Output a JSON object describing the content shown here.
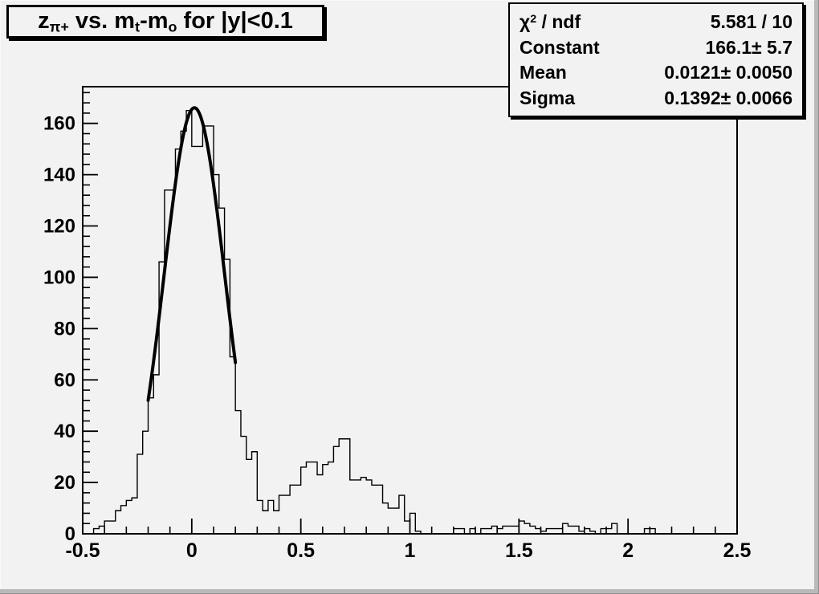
{
  "window": {
    "background": "#f2f2f2",
    "edge_dark": "#8f8f8f",
    "edge_band": "#b9b9b9"
  },
  "title": {
    "plain": "z_pi+ vs. m_t-m_o for |y|<0.1",
    "segments": [
      {
        "t": "z"
      },
      {
        "t": "π+",
        "sub": true
      },
      {
        "t": " vs. m"
      },
      {
        "t": "t",
        "sub": true
      },
      {
        "t": "-m"
      },
      {
        "t": "o",
        "sub": true
      },
      {
        "t": " for |y|<0.1"
      }
    ]
  },
  "stats": {
    "rows": [
      {
        "label_segments": [
          {
            "t": "χ"
          },
          {
            "t": "2",
            "sup": true
          },
          {
            "t": " / ndf"
          }
        ],
        "label_plain": "chi2 / ndf",
        "value": "5.581 / 10"
      },
      {
        "label_segments": [
          {
            "t": "Constant"
          }
        ],
        "label_plain": "Constant",
        "value": "166.1± 5.7"
      },
      {
        "label_segments": [
          {
            "t": "Mean"
          }
        ],
        "label_plain": "Mean",
        "value": "0.0121± 0.0050"
      },
      {
        "label_segments": [
          {
            "t": "Sigma"
          }
        ],
        "label_plain": "Sigma",
        "value": "0.1392± 0.0066"
      }
    ]
  },
  "chart_data": {
    "type": "bar",
    "subtype": "step-histogram",
    "title": "z_pi+ vs. m_t-m_o for |y|<0.1",
    "xlabel": "",
    "ylabel": "",
    "xlim": [
      -0.5,
      2.5
    ],
    "ylim": [
      0,
      174.3
    ],
    "grid": false,
    "legend_position": "none",
    "x_start": -0.5,
    "bin_width": 0.025,
    "values": [
      0,
      0,
      2,
      3,
      5,
      5,
      9,
      11,
      13,
      14,
      31,
      40,
      53,
      62,
      106,
      134,
      134,
      150,
      157,
      165,
      151,
      151,
      159,
      159,
      140,
      127,
      107,
      69,
      48,
      38,
      29,
      32,
      13,
      9,
      13,
      9,
      15,
      15,
      19,
      19,
      26,
      28,
      28,
      23,
      27,
      28,
      34,
      37,
      37,
      21,
      21,
      22,
      21,
      19,
      19,
      12,
      10,
      10,
      15,
      5,
      8,
      1,
      0,
      0,
      0,
      0,
      0,
      0,
      2,
      2,
      0,
      2,
      0,
      2,
      2,
      3,
      2,
      3,
      3,
      3,
      5,
      4,
      3,
      2,
      1,
      2,
      2,
      2,
      4,
      3,
      3,
      1,
      2,
      1,
      0,
      2,
      2,
      4,
      0,
      0,
      0,
      0,
      0,
      2,
      2,
      0,
      0,
      0,
      0,
      0,
      0,
      0,
      0,
      0,
      0,
      0,
      0,
      0,
      0,
      0
    ],
    "x_major_ticks": [
      -0.5,
      0,
      0.5,
      1,
      1.5,
      2,
      2.5
    ],
    "x_tick_labels": [
      "-0.5",
      "0",
      "0.5",
      "1",
      "1.5",
      "2",
      "2.5"
    ],
    "x_minor_step": 0.1,
    "y_major_ticks": [
      0,
      20,
      40,
      60,
      80,
      100,
      120,
      140,
      160
    ],
    "y_tick_labels": [
      "0",
      "20",
      "40",
      "60",
      "80",
      "100",
      "120",
      "140",
      "160"
    ],
    "y_minor_step": 4,
    "fit": {
      "type": "gaussian",
      "constant": 166.1,
      "mean": 0.0121,
      "sigma": 0.1392,
      "range": [
        -0.2,
        0.2
      ]
    },
    "line_color": "#000000",
    "fit_color": "#000000"
  }
}
